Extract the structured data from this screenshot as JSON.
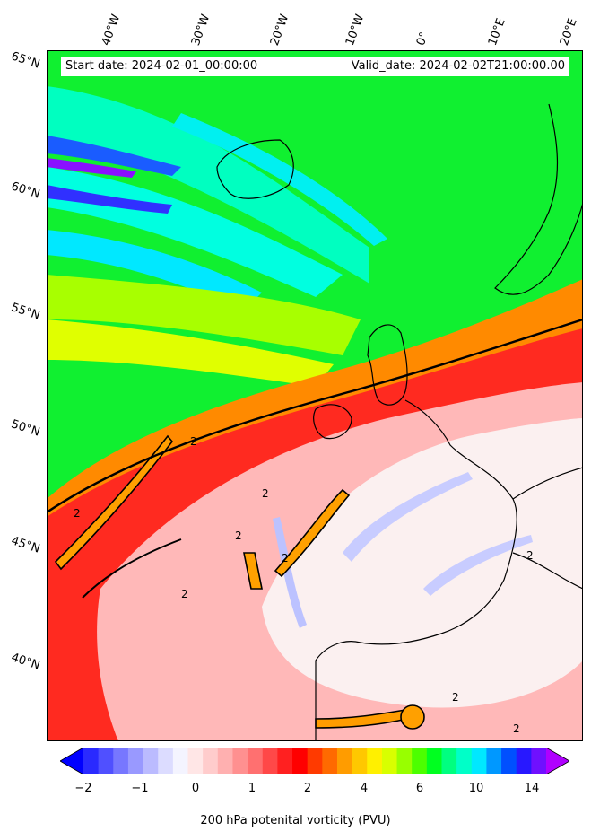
{
  "header": {
    "start_date": "Start date: 2024-02-01_00:00:00",
    "valid_date": "Valid_date: 2024-02-02T21:00:00.00"
  },
  "graticule": {
    "lon_labels": [
      "40°W",
      "30°W",
      "20°W",
      "10°W",
      "0°",
      "10°E",
      "20°E"
    ],
    "lat_labels": [
      "65°N",
      "60°N",
      "55°N",
      "50°N",
      "45°N",
      "40°N"
    ]
  },
  "contour_label": "2",
  "colorbar": {
    "label": "200 hPa potenital vorticity (PVU)",
    "ticks": [
      "−2",
      "−1",
      "0",
      "1",
      "2",
      "4",
      "6",
      "10",
      "14"
    ],
    "colors": [
      "#0000ff",
      "#2a2aff",
      "#5050ff",
      "#7777ff",
      "#9999ff",
      "#bbbbff",
      "#dcdcff",
      "#f4f4ff",
      "#ffe6e6",
      "#ffcccc",
      "#ffb0b0",
      "#ff9090",
      "#ff7070",
      "#ff4848",
      "#ff2020",
      "#ff0000",
      "#ff3a00",
      "#ff6a00",
      "#ff9c00",
      "#ffc800",
      "#fff000",
      "#d8ff00",
      "#98ff00",
      "#4cff00",
      "#00ff20",
      "#00ff80",
      "#00ffc8",
      "#00e8ff",
      "#0098ff",
      "#0050ff",
      "#2818ff",
      "#7010ff",
      "#b000ff"
    ]
  }
}
